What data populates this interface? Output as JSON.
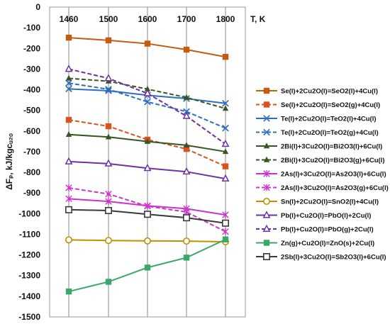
{
  "chart_data": {
    "type": "line",
    "x": [
      1460,
      1500,
      1600,
      1700,
      1800
    ],
    "x_tick_labels": [
      "1460",
      "1500",
      "1600",
      "1700",
      "1800"
    ],
    "xlabel": "T, K",
    "ylabel": "ΔFₚ, kJ/kgᴄᵤ₂ₒ",
    "ylim": [
      -1500,
      0
    ],
    "y_ticks": [
      0,
      -100,
      -200,
      -300,
      -400,
      -500,
      -600,
      -700,
      -800,
      -900,
      -1000,
      -1100,
      -1200,
      -1300,
      -1400,
      -1500
    ],
    "y_tick_labels": [
      "0",
      "-100",
      "-200",
      "-300",
      "-400",
      "-500",
      "-600",
      "-700",
      "-800",
      "-900",
      "-1000",
      "-1100",
      "-1200",
      "-1300",
      "-1400",
      "-1500"
    ],
    "grid": "vertical",
    "x_axis_position": "top",
    "legend_position": "right",
    "series": [
      {
        "name": "Se(l)+2Cu2O(l)=SeO2(l)+4Cu(l)",
        "color": "#c55a11",
        "dash": false,
        "marker": "square",
        "values": [
          -148,
          -161,
          -177,
          -206,
          -241
        ]
      },
      {
        "name": "Se(l)+2Cu2O(l)=SeO2(g)+4Cu(l)",
        "color": "#d9531e",
        "dash": true,
        "marker": "square",
        "values": [
          -546,
          -577,
          -642,
          -687,
          -771
        ]
      },
      {
        "name": "Te(l)+2Cu2O(l)=TeO2(l)+4Cu(l)",
        "color": "#2e6dbf",
        "dash": false,
        "marker": "x",
        "values": [
          -396,
          -405,
          -427,
          -443,
          -466
        ]
      },
      {
        "name": "Te(l)+2Cu2O(l)=TeO2(g)+4Cu(l)",
        "color": "#2e6dbf",
        "dash": true,
        "marker": "x",
        "values": [
          -368,
          -398,
          -459,
          -506,
          -586
        ]
      },
      {
        "name": "2Bi(l)+3Cu2O(l)=Bi2O3(l)+6Cu(l)",
        "color": "#375623",
        "dash": false,
        "marker": "triangle",
        "values": [
          -617,
          -629,
          -651,
          -669,
          -700
        ]
      },
      {
        "name": "2Bi(l)+3Cu2O(l)=Bi2O3(g)+6Cu(l)",
        "color": "#375623",
        "dash": true,
        "marker": "triangle",
        "values": [
          -345,
          -359,
          -397,
          -438,
          -491
        ]
      },
      {
        "name": "2As(l)+3Cu2O(l)=As2O3(l)+6Cu(l)",
        "color": "#cc33cc",
        "dash": false,
        "marker": "star",
        "values": [
          -928,
          -941,
          -962,
          -976,
          -1006
        ]
      },
      {
        "name": "2As(l)+3Cu2O(l)=As2O3(g)+6Cu(l)",
        "color": "#cc33cc",
        "dash": true,
        "marker": "star",
        "values": [
          -875,
          -905,
          -964,
          -992,
          -1087
        ]
      },
      {
        "name": "Sn(l)+2Cu2O(l)=SnO2(l)+4Cu(l)",
        "color": "#bf9000",
        "dash": false,
        "marker": "circle",
        "values": [
          -1127,
          -1130,
          -1132,
          -1133,
          -1136
        ]
      },
      {
        "name": "Pb(l)+Cu2O(l)=PbO(l)+2Cu(l)",
        "color": "#7030a0",
        "dash": false,
        "marker": "triangle-open",
        "values": [
          -748,
          -758,
          -780,
          -797,
          -831
        ]
      },
      {
        "name": "Pb(l)+Cu2O(l)=PbO(g)+2Cu(l)",
        "color": "#7030a0",
        "dash": true,
        "marker": "triangle-open",
        "values": [
          -300,
          -345,
          -418,
          -528,
          -663
        ]
      },
      {
        "name": "Zn(g)+Cu2O(l)=ZnO(s)+2Cu(l)",
        "color": "#3aa868",
        "dash": false,
        "marker": "square",
        "values": [
          -1377,
          -1330,
          -1261,
          -1213,
          -1125
        ]
      },
      {
        "name": "2Sb(l)+3Cu2O(l)=Sb2O3(l)+6Cu(l)",
        "color": "#3a3a3a",
        "dash": false,
        "marker": "square-open",
        "values": [
          -981,
          -985,
          -1003,
          -1020,
          -1046
        ]
      }
    ]
  }
}
